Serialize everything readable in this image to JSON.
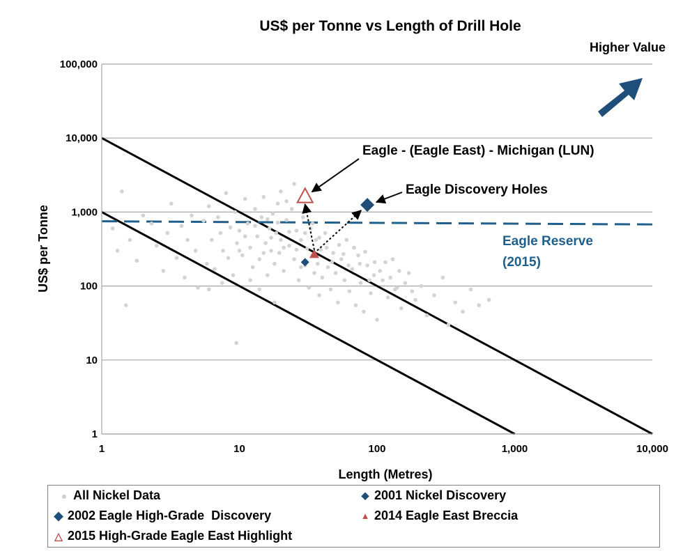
{
  "chart_data": {
    "type": "scatter",
    "title": "US$ per Tonne vs Length of Drill Hole",
    "xlabel": "Length (Metres)",
    "ylabel": "US$ per Tonne",
    "x_scale": "log",
    "y_scale": "log",
    "xlim": [
      1,
      10000
    ],
    "ylim": [
      1,
      100000
    ],
    "x_ticks": [
      "1",
      "10",
      "100",
      "1,000",
      "10,000"
    ],
    "y_ticks": [
      "1",
      "10",
      "100",
      "1,000",
      "10,000",
      "100,000"
    ],
    "grid": "horizontal",
    "series": [
      {
        "name": "All Nickel Data",
        "marker": "dot",
        "color": "#d3d3d3",
        "points": [
          [
            1.4,
            1900
          ],
          [
            1.5,
            55
          ],
          [
            1.2,
            600
          ],
          [
            1.3,
            300
          ],
          [
            1.6,
            420
          ],
          [
            1.8,
            220
          ],
          [
            2.0,
            900
          ],
          [
            2.3,
            700
          ],
          [
            2.5,
            350
          ],
          [
            2.8,
            160
          ],
          [
            3.0,
            520
          ],
          [
            3.2,
            1300
          ],
          [
            3.5,
            240
          ],
          [
            3.8,
            650
          ],
          [
            4.0,
            130
          ],
          [
            4.2,
            420
          ],
          [
            4.5,
            900
          ],
          [
            4.8,
            300
          ],
          [
            5.0,
            95
          ],
          [
            5.5,
            760
          ],
          [
            5.8,
            200
          ],
          [
            6.0,
            1200
          ],
          [
            6.3,
            420
          ],
          [
            6.6,
            170
          ],
          [
            7.0,
            850
          ],
          [
            7.3,
            520
          ],
          [
            7.6,
            300
          ],
          [
            8.0,
            1800
          ],
          [
            8.3,
            240
          ],
          [
            8.6,
            620
          ],
          [
            9.0,
            140
          ],
          [
            9.3,
            1000
          ],
          [
            9.6,
            380
          ],
          [
            10.0,
            560
          ],
          [
            10.5,
            260
          ],
          [
            11.0,
            1500
          ],
          [
            11.5,
            700
          ],
          [
            12.0,
            330
          ],
          [
            12.5,
            180
          ],
          [
            13.0,
            1100
          ],
          [
            13.5,
            470
          ],
          [
            14.0,
            230
          ],
          [
            14.5,
            850
          ],
          [
            15.0,
            1600
          ],
          [
            15.5,
            380
          ],
          [
            16.0,
            140
          ],
          [
            16.5,
            600
          ],
          [
            17.0,
            300
          ],
          [
            17.5,
            950
          ],
          [
            18.0,
            200
          ],
          [
            18.5,
            520
          ],
          [
            19.0,
            1300
          ],
          [
            19.5,
            280
          ],
          [
            20.0,
            420
          ],
          [
            21.0,
            160
          ],
          [
            22.0,
            780
          ],
          [
            23.0,
            350
          ],
          [
            24.0,
            1100
          ],
          [
            25.0,
            230
          ],
          [
            26.0,
            560
          ],
          [
            27.0,
            120
          ],
          [
            28.0,
            420
          ],
          [
            29.0,
            850
          ],
          [
            30.0,
            190
          ],
          [
            31.0,
            320
          ],
          [
            32.0,
            95
          ],
          [
            33.0,
            600
          ],
          [
            34.0,
            260
          ],
          [
            35.0,
            150
          ],
          [
            36.0,
            420
          ],
          [
            37.0,
            200
          ],
          [
            38.0,
            75
          ],
          [
            39.0,
            310
          ],
          [
            40.0,
            130
          ],
          [
            42.0,
            520
          ],
          [
            44.0,
            180
          ],
          [
            46.0,
            90
          ],
          [
            48.0,
            280
          ],
          [
            50.0,
            150
          ],
          [
            52.0,
            60
          ],
          [
            55.0,
            230
          ],
          [
            58.0,
            120
          ],
          [
            60.0,
            420
          ],
          [
            63.0,
            85
          ],
          [
            66.0,
            170
          ],
          [
            70.0,
            55
          ],
          [
            73.0,
            260
          ],
          [
            76.0,
            110
          ],
          [
            80.0,
            45
          ],
          [
            85.0,
            190
          ],
          [
            90.0,
            80
          ],
          [
            95.0,
            140
          ],
          [
            100.0,
            35
          ],
          [
            110.0,
            120
          ],
          [
            120.0,
            70
          ],
          [
            130.0,
            230
          ],
          [
            140.0,
            95
          ],
          [
            150.0,
            50
          ],
          [
            170.0,
            150
          ],
          [
            190.0,
            65
          ],
          [
            210.0,
            100
          ],
          [
            230.0,
            40
          ],
          [
            260.0,
            75
          ],
          [
            300.0,
            130
          ],
          [
            330.0,
            30
          ],
          [
            370.0,
            60
          ],
          [
            420.0,
            45
          ],
          [
            480.0,
            90
          ],
          [
            550.0,
            55
          ],
          [
            650.0,
            65
          ],
          [
            20.0,
            1900
          ],
          [
            12.0,
            120
          ],
          [
            9.5,
            17
          ],
          [
            25.0,
            2400
          ],
          [
            18.0,
            60
          ],
          [
            14.0,
            90
          ],
          [
            16.0,
            800
          ],
          [
            22.0,
            1400
          ],
          [
            7.5,
            110
          ],
          [
            6.0,
            90
          ],
          [
            10.0,
            300
          ],
          [
            11.0,
            470
          ],
          [
            13.0,
            650
          ],
          [
            15.0,
            280
          ],
          [
            17.0,
            450
          ],
          [
            19.0,
            720
          ],
          [
            21.0,
            330
          ],
          [
            23.0,
            540
          ],
          [
            26.0,
            310
          ],
          [
            28.0,
            180
          ],
          [
            30.0,
            520
          ],
          [
            34.0,
            700
          ],
          [
            38.0,
            450
          ],
          [
            43.0,
            330
          ],
          [
            47.0,
            210
          ],
          [
            53.0,
            360
          ],
          [
            57.0,
            270
          ],
          [
            62.0,
            190
          ],
          [
            68.0,
            330
          ],
          [
            75.0,
            200
          ],
          [
            82.0,
            290
          ],
          [
            88.0,
            120
          ],
          [
            96.0,
            210
          ],
          [
            105.0,
            160
          ],
          [
            115.0,
            210
          ],
          [
            125.0,
            130
          ],
          [
            135.0,
            90
          ],
          [
            145.0,
            160
          ],
          [
            160.0,
            110
          ],
          [
            180.0,
            85
          ]
        ]
      },
      {
        "name": "2001 Nickel Discovery",
        "marker": "diamond-small",
        "color": "#1f4e79",
        "points": [
          [
            30,
            210
          ]
        ]
      },
      {
        "name": "2002 Eagle High-Grade  Discovery",
        "marker": "diamond-large",
        "color": "#1f4e79",
        "points": [
          [
            85,
            1250
          ]
        ]
      },
      {
        "name": "2014 Eagle East Breccia",
        "marker": "triangle-filled",
        "color": "#c0504d",
        "points": [
          [
            35,
            270
          ]
        ]
      },
      {
        "name": "2015 High-Grade Eagle East Highlight",
        "marker": "triangle-open",
        "color": "#c0504d",
        "points": [
          [
            30,
            1650
          ]
        ]
      }
    ],
    "lines": [
      {
        "style": "solid",
        "color": "#000000",
        "points": [
          [
            1,
            10000
          ],
          [
            10000,
            1
          ]
        ]
      },
      {
        "style": "solid",
        "color": "#000000",
        "points": [
          [
            1,
            1000
          ],
          [
            1000,
            1
          ]
        ]
      },
      {
        "style": "dashed",
        "color": "#1f5f8b",
        "points": [
          [
            1,
            750
          ],
          [
            10000,
            680
          ]
        ]
      }
    ],
    "annotations": [
      {
        "text": "Higher Value",
        "color": "#000000"
      },
      {
        "text": "Eagle - (Eagle East) - Michigan (LUN)",
        "color": "#000000"
      },
      {
        "text": "Eagle Discovery Holes",
        "color": "#000000"
      },
      {
        "text": "Eagle Reserve",
        "color": "#1f5f8b"
      },
      {
        "text": "(2015)",
        "color": "#1f5f8b"
      }
    ],
    "legend": [
      {
        "label": "All Nickel Data",
        "symbol": "dot",
        "color": "#d3d3d3"
      },
      {
        "label": "2001 Nickel Discovery",
        "symbol": "diamond-small",
        "color": "#1f4e79"
      },
      {
        "label": "2002 Eagle High-Grade  Discovery",
        "symbol": "diamond-large",
        "color": "#1f4e79"
      },
      {
        "label": "2014 Eagle East Breccia",
        "symbol": "triangle-filled",
        "color": "#c0504d"
      },
      {
        "label": "2015 High-Grade Eagle East Highlight",
        "symbol": "triangle-open",
        "color": "#c0504d"
      }
    ],
    "legend_position": "bottom"
  }
}
